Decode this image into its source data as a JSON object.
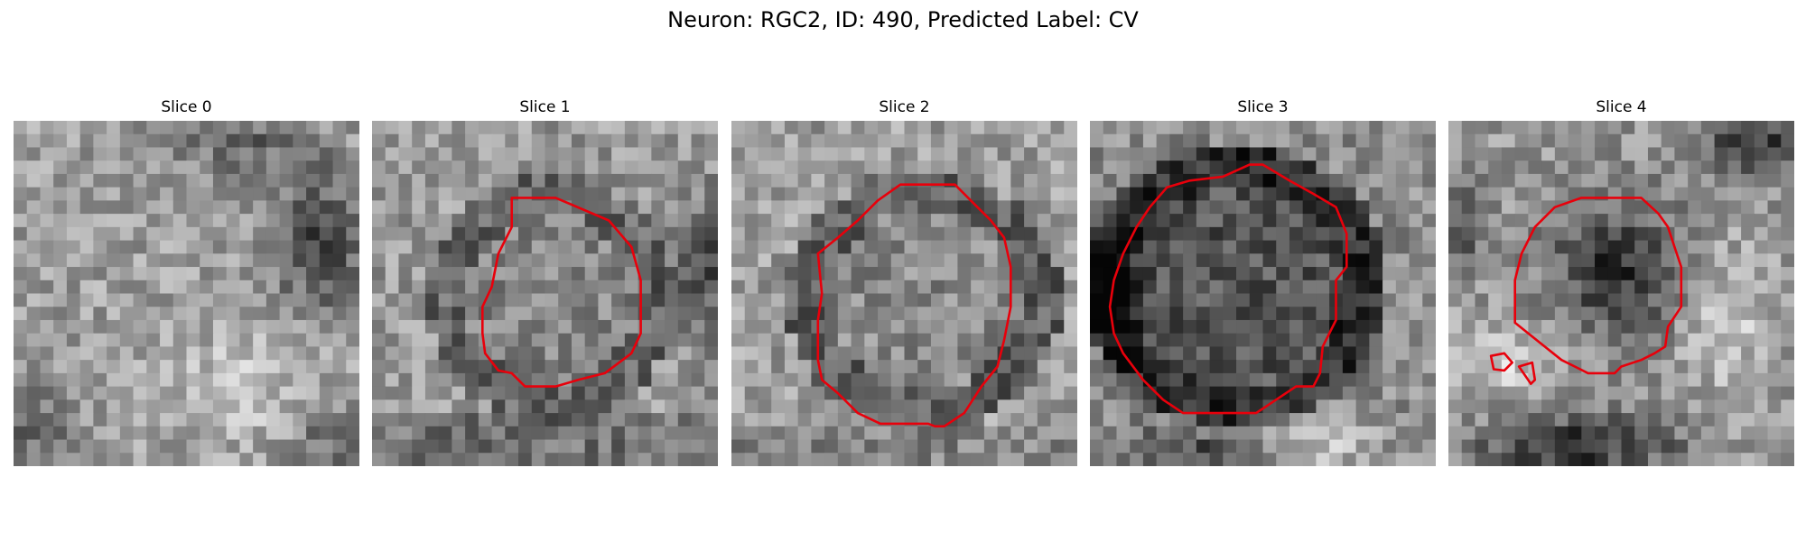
{
  "figure": {
    "title": "Neuron: RGC2, ID: 490, Predicted Label: CV"
  },
  "slices": [
    {
      "label": "Slice 0"
    },
    {
      "label": "Slice 1"
    },
    {
      "label": "Slice 2"
    },
    {
      "label": "Slice 3"
    },
    {
      "label": "Slice 4"
    }
  ],
  "colors": {
    "contour": "#e8000b",
    "background": "#ffffff"
  }
}
